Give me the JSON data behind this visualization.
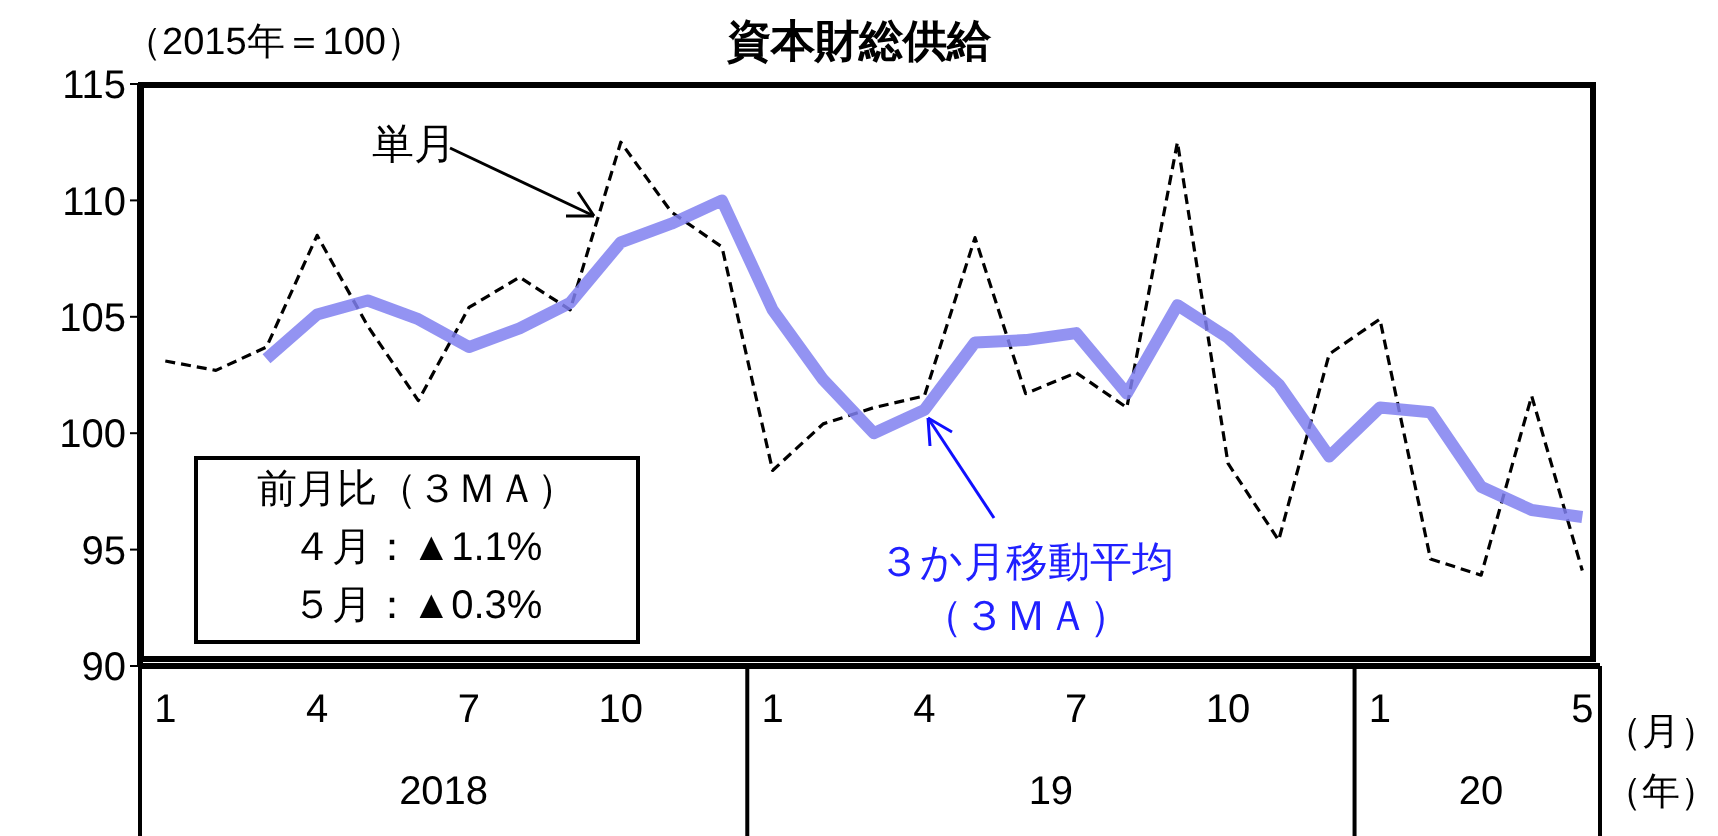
{
  "chart_data": {
    "type": "line",
    "title": "資本財総供給",
    "ylabel": "（2015年＝100）",
    "xlabel": "（月）",
    "categories": [
      "1",
      null,
      null,
      "4",
      null,
      null,
      "7",
      null,
      null,
      "10",
      null,
      null,
      "1",
      null,
      null,
      "4",
      null,
      null,
      "7",
      null,
      null,
      "10",
      null,
      null,
      "1",
      null,
      null,
      null,
      "5"
    ],
    "series": [
      {
        "name": "単月",
        "color": "#000000",
        "line_style": "dashed",
        "values": [
          103.1,
          102.7,
          103.7,
          108.5,
          104.6,
          101.4,
          105.4,
          106.7,
          105.3,
          112.5,
          109.5,
          108.0,
          98.4,
          100.4,
          101.1,
          101.6,
          108.4,
          101.7,
          102.6,
          101.1,
          112.5,
          98.7,
          95.4,
          103.4,
          104.9,
          94.6,
          93.9,
          101.6,
          94.1
        ]
      },
      {
        "name": "３か月移動平均（３ＭＡ）",
        "color": "#8080f0",
        "line_style": "solid",
        "values": [
          null,
          null,
          103.2,
          105.1,
          105.7,
          104.9,
          103.7,
          104.5,
          105.6,
          108.2,
          109.0,
          110.0,
          105.3,
          102.3,
          100.0,
          101.0,
          103.9,
          104.0,
          104.3,
          101.7,
          105.5,
          104.1,
          102.1,
          99.0,
          101.1,
          100.9,
          97.7,
          96.7,
          96.4
        ]
      }
    ],
    "ylim": [
      90,
      115
    ],
    "yticks": [
      90,
      95,
      100,
      105,
      110,
      115
    ],
    "annotations": [
      "2018",
      "19",
      "20",
      "（年）",
      "前月比（３ＭＡ）",
      "４月：▲1.1%",
      "５月：▲0.3%"
    ]
  }
}
